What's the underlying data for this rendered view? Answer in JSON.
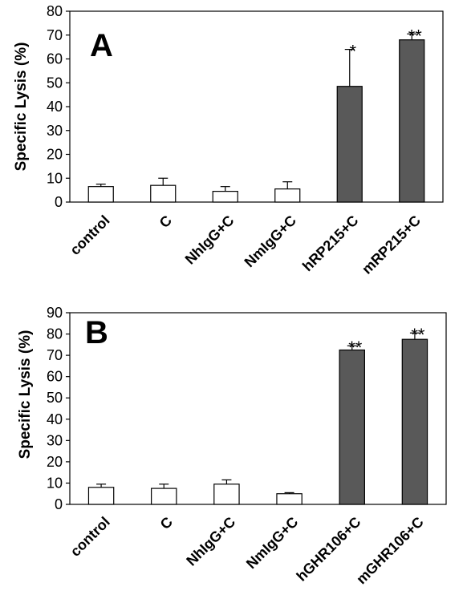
{
  "chart_data": [
    {
      "type": "bar",
      "panel_label": "A",
      "ylabel": "Specific Lysis  (%)",
      "ylim": [
        0,
        80
      ],
      "yticks": [
        0,
        10,
        20,
        30,
        40,
        50,
        60,
        70,
        80
      ],
      "categories": [
        "control",
        "C",
        "NhIgG+C",
        "NmIgG+C",
        "hRP215+C",
        "mRP215+C"
      ],
      "values": [
        6.5,
        7,
        4.5,
        5.5,
        48.5,
        68
      ],
      "errors": [
        1,
        3,
        2,
        3,
        15.5,
        2.5
      ],
      "significance": [
        "",
        "",
        "",
        "",
        "*",
        "**"
      ],
      "bar_colors": [
        "#ffffff",
        "#ffffff",
        "#ffffff",
        "#ffffff",
        "#595959",
        "#595959"
      ]
    },
    {
      "type": "bar",
      "panel_label": "B",
      "ylabel": "Specific Lysis (%)",
      "ylim": [
        0,
        90
      ],
      "yticks": [
        0,
        10,
        20,
        30,
        40,
        50,
        60,
        70,
        80,
        90
      ],
      "categories": [
        "control",
        "C",
        "NhIgG+C",
        "NmIgG+C",
        "hGHR106+C",
        "mGHR106+C"
      ],
      "values": [
        8,
        7.5,
        9.5,
        5,
        72.5,
        77.5
      ],
      "errors": [
        1.5,
        2,
        2,
        0.5,
        2,
        3
      ],
      "significance": [
        "",
        "",
        "",
        "",
        "**",
        "**"
      ],
      "bar_colors": [
        "#ffffff",
        "#ffffff",
        "#ffffff",
        "#ffffff",
        "#595959",
        "#595959"
      ]
    }
  ]
}
